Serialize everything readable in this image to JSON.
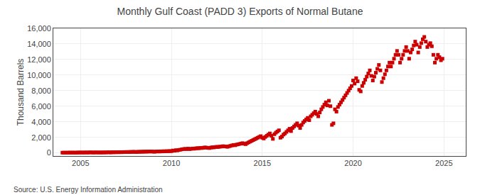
{
  "chart_data": {
    "type": "scatter",
    "title": "Monthly Gulf Coast (PADD 3) Exports of Normal Butane",
    "ylabel": "Thousand Barrels",
    "source": "Source: U.S. Energy Information Administration",
    "color": "#cc0000",
    "marker": "square",
    "grid": true,
    "xlim": [
      2003.5,
      2026.2
    ],
    "ylim": [
      -400,
      16000
    ],
    "xticks": [
      2005,
      2010,
      2015,
      2020,
      2025
    ],
    "yticks": [
      0,
      {
        "value": 2000,
        "label": "2,000"
      },
      {
        "value": 4000,
        "label": "4,000"
      },
      {
        "value": 6000,
        "label": "6,000"
      },
      {
        "value": 8000,
        "label": "8,000"
      },
      {
        "value": 10000,
        "label": "10,000"
      },
      {
        "value": 12000,
        "label": "12,000"
      },
      {
        "value": 14000,
        "label": "14,000"
      },
      {
        "value": 16000,
        "label": "16,000"
      }
    ],
    "x": [
      2004.0,
      2004.083,
      2004.167,
      2004.25,
      2004.333,
      2004.417,
      2004.5,
      2004.583,
      2004.667,
      2004.75,
      2004.833,
      2004.917,
      2005.0,
      2005.083,
      2005.167,
      2005.25,
      2005.333,
      2005.417,
      2005.5,
      2005.583,
      2005.667,
      2005.75,
      2005.833,
      2005.917,
      2006.0,
      2006.083,
      2006.167,
      2006.25,
      2006.333,
      2006.417,
      2006.5,
      2006.583,
      2006.667,
      2006.75,
      2006.833,
      2006.917,
      2007.0,
      2007.083,
      2007.167,
      2007.25,
      2007.333,
      2007.417,
      2007.5,
      2007.583,
      2007.667,
      2007.75,
      2007.833,
      2007.917,
      2008.0,
      2008.083,
      2008.167,
      2008.25,
      2008.333,
      2008.417,
      2008.5,
      2008.583,
      2008.667,
      2008.75,
      2008.833,
      2008.917,
      2009.0,
      2009.083,
      2009.167,
      2009.25,
      2009.333,
      2009.417,
      2009.5,
      2009.583,
      2009.667,
      2009.75,
      2009.833,
      2009.917,
      2010.0,
      2010.083,
      2010.167,
      2010.25,
      2010.333,
      2010.417,
      2010.5,
      2010.583,
      2010.667,
      2010.75,
      2010.833,
      2010.917,
      2011.0,
      2011.083,
      2011.167,
      2011.25,
      2011.333,
      2011.417,
      2011.5,
      2011.583,
      2011.667,
      2011.75,
      2011.833,
      2011.917,
      2012.0,
      2012.083,
      2012.167,
      2012.25,
      2012.333,
      2012.417,
      2012.5,
      2012.583,
      2012.667,
      2012.75,
      2012.833,
      2012.917,
      2013.0,
      2013.083,
      2013.167,
      2013.25,
      2013.333,
      2013.417,
      2013.5,
      2013.583,
      2013.667,
      2013.75,
      2013.833,
      2013.917,
      2014.0,
      2014.083,
      2014.167,
      2014.25,
      2014.333,
      2014.417,
      2014.5,
      2014.583,
      2014.667,
      2014.75,
      2014.833,
      2014.917,
      2015.0,
      2015.083,
      2015.167,
      2015.25,
      2015.333,
      2015.417,
      2015.5,
      2015.583,
      2015.667,
      2015.75,
      2015.833,
      2015.917,
      2016.0,
      2016.083,
      2016.167,
      2016.25,
      2016.333,
      2016.417,
      2016.5,
      2016.583,
      2016.667,
      2016.75,
      2016.833,
      2016.917,
      2017.0,
      2017.083,
      2017.167,
      2017.25,
      2017.333,
      2017.417,
      2017.5,
      2017.583,
      2017.667,
      2017.75,
      2017.833,
      2017.917,
      2018.0,
      2018.083,
      2018.167,
      2018.25,
      2018.333,
      2018.417,
      2018.5,
      2018.583,
      2018.667,
      2018.75,
      2018.833,
      2018.917,
      2019.0,
      2019.083,
      2019.167,
      2019.25,
      2019.333,
      2019.417,
      2019.5,
      2019.583,
      2019.667,
      2019.75,
      2019.833,
      2019.917,
      2020.0,
      2020.083,
      2020.167,
      2020.25,
      2020.333,
      2020.417,
      2020.5,
      2020.583,
      2020.667,
      2020.75,
      2020.833,
      2020.917,
      2021.0,
      2021.083,
      2021.167,
      2021.25,
      2021.333,
      2021.417,
      2021.5,
      2021.583,
      2021.667,
      2021.75,
      2021.833,
      2021.917,
      2022.0,
      2022.083,
      2022.167,
      2022.25,
      2022.333,
      2022.417,
      2022.5,
      2022.583,
      2022.667,
      2022.75,
      2022.833,
      2022.917,
      2023.0,
      2023.083,
      2023.167,
      2023.25,
      2023.333,
      2023.417,
      2023.5,
      2023.583,
      2023.667,
      2023.75,
      2023.833,
      2023.917,
      2024.0,
      2024.083,
      2024.167,
      2024.25,
      2024.333,
      2024.417,
      2024.5,
      2024.583,
      2024.667,
      2024.75,
      2024.833,
      2024.917
    ],
    "values": [
      30,
      28,
      35,
      25,
      40,
      38,
      30,
      45,
      35,
      28,
      50,
      42,
      55,
      48,
      38,
      60,
      52,
      45,
      70,
      62,
      55,
      48,
      65,
      58,
      50,
      60,
      45,
      70,
      55,
      65,
      80,
      72,
      58,
      90,
      75,
      85,
      95,
      80,
      105,
      88,
      100,
      115,
      98,
      120,
      108,
      130,
      118,
      140,
      125,
      110,
      145,
      130,
      155,
      140,
      168,
      150,
      175,
      160,
      185,
      170,
      160,
      145,
      175,
      190,
      165,
      200,
      185,
      215,
      198,
      225,
      210,
      240,
      220,
      310,
      280,
      350,
      320,
      380,
      410,
      460,
      490,
      520,
      480,
      550,
      480,
      520,
      560,
      530,
      580,
      610,
      590,
      640,
      620,
      660,
      700,
      680,
      650,
      620,
      680,
      720,
      700,
      750,
      780,
      760,
      800,
      820,
      860,
      840,
      820,
      780,
      850,
      900,
      960,
      1020,
      980,
      1060,
      1100,
      1150,
      1200,
      1250,
      1180,
      1120,
      1250,
      1350,
      1450,
      1550,
      1650,
      1750,
      1850,
      1950,
      2050,
      2150,
      1950,
      1850,
      2050,
      2200,
      2350,
      2500,
      2200,
      1800,
      2400,
      2600,
      2750,
      2900,
      1950,
      2100,
      2350,
      2500,
      2700,
      2900,
      3100,
      2800,
      3200,
      3400,
      3600,
      3800,
      3500,
      3200,
      3600,
      3900,
      4100,
      4300,
      4500,
      4200,
      4700,
      4900,
      5100,
      5300,
      5000,
      4700,
      5200,
      5600,
      5900,
      6200,
      6500,
      6100,
      6700,
      6000,
      3600,
      3800,
      5600,
      5300,
      5900,
      6200,
      6500,
      6800,
      7100,
      7400,
      7700,
      8000,
      8300,
      8600,
      9300,
      8900,
      9600,
      9200,
      8100,
      7900,
      8600,
      9000,
      9400,
      9800,
      10200,
      10600,
      9900,
      9300,
      9800,
      10300,
      10800,
      11300,
      10600,
      9100,
      9600,
      10100,
      10600,
      11100,
      11600,
      11100,
      11600,
      12100,
      12600,
      13100,
      12600,
      11600,
      12100,
      12600,
      13100,
      13600,
      13100,
      12100,
      12900,
      13300,
      13800,
      14300,
      13900,
      12900,
      13600,
      14100,
      14600,
      14900,
      14300,
      13600,
      13900,
      14100,
      13700,
      12600,
      11600,
      12100,
      12600,
      12300,
      11900,
      12100
    ]
  }
}
